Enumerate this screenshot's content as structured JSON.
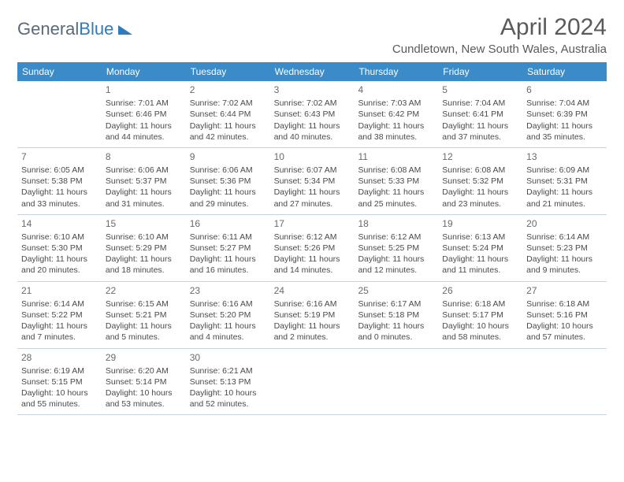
{
  "logo": {
    "general": "General",
    "blue": "Blue"
  },
  "header": {
    "title": "April 2024",
    "location": "Cundletown, New South Wales, Australia"
  },
  "weekdays": [
    "Sunday",
    "Monday",
    "Tuesday",
    "Wednesday",
    "Thursday",
    "Friday",
    "Saturday"
  ],
  "colors": {
    "header_bg": "#3b8bc9",
    "header_text": "#ffffff",
    "border": "#c8d2da",
    "text": "#4a4a4a"
  },
  "weeks": [
    [
      null,
      {
        "n": "1",
        "sunrise": "7:01 AM",
        "sunset": "6:46 PM",
        "daylight": "11 hours and 44 minutes."
      },
      {
        "n": "2",
        "sunrise": "7:02 AM",
        "sunset": "6:44 PM",
        "daylight": "11 hours and 42 minutes."
      },
      {
        "n": "3",
        "sunrise": "7:02 AM",
        "sunset": "6:43 PM",
        "daylight": "11 hours and 40 minutes."
      },
      {
        "n": "4",
        "sunrise": "7:03 AM",
        "sunset": "6:42 PM",
        "daylight": "11 hours and 38 minutes."
      },
      {
        "n": "5",
        "sunrise": "7:04 AM",
        "sunset": "6:41 PM",
        "daylight": "11 hours and 37 minutes."
      },
      {
        "n": "6",
        "sunrise": "7:04 AM",
        "sunset": "6:39 PM",
        "daylight": "11 hours and 35 minutes."
      }
    ],
    [
      {
        "n": "7",
        "sunrise": "6:05 AM",
        "sunset": "5:38 PM",
        "daylight": "11 hours and 33 minutes."
      },
      {
        "n": "8",
        "sunrise": "6:06 AM",
        "sunset": "5:37 PM",
        "daylight": "11 hours and 31 minutes."
      },
      {
        "n": "9",
        "sunrise": "6:06 AM",
        "sunset": "5:36 PM",
        "daylight": "11 hours and 29 minutes."
      },
      {
        "n": "10",
        "sunrise": "6:07 AM",
        "sunset": "5:34 PM",
        "daylight": "11 hours and 27 minutes."
      },
      {
        "n": "11",
        "sunrise": "6:08 AM",
        "sunset": "5:33 PM",
        "daylight": "11 hours and 25 minutes."
      },
      {
        "n": "12",
        "sunrise": "6:08 AM",
        "sunset": "5:32 PM",
        "daylight": "11 hours and 23 minutes."
      },
      {
        "n": "13",
        "sunrise": "6:09 AM",
        "sunset": "5:31 PM",
        "daylight": "11 hours and 21 minutes."
      }
    ],
    [
      {
        "n": "14",
        "sunrise": "6:10 AM",
        "sunset": "5:30 PM",
        "daylight": "11 hours and 20 minutes."
      },
      {
        "n": "15",
        "sunrise": "6:10 AM",
        "sunset": "5:29 PM",
        "daylight": "11 hours and 18 minutes."
      },
      {
        "n": "16",
        "sunrise": "6:11 AM",
        "sunset": "5:27 PM",
        "daylight": "11 hours and 16 minutes."
      },
      {
        "n": "17",
        "sunrise": "6:12 AM",
        "sunset": "5:26 PM",
        "daylight": "11 hours and 14 minutes."
      },
      {
        "n": "18",
        "sunrise": "6:12 AM",
        "sunset": "5:25 PM",
        "daylight": "11 hours and 12 minutes."
      },
      {
        "n": "19",
        "sunrise": "6:13 AM",
        "sunset": "5:24 PM",
        "daylight": "11 hours and 11 minutes."
      },
      {
        "n": "20",
        "sunrise": "6:14 AM",
        "sunset": "5:23 PM",
        "daylight": "11 hours and 9 minutes."
      }
    ],
    [
      {
        "n": "21",
        "sunrise": "6:14 AM",
        "sunset": "5:22 PM",
        "daylight": "11 hours and 7 minutes."
      },
      {
        "n": "22",
        "sunrise": "6:15 AM",
        "sunset": "5:21 PM",
        "daylight": "11 hours and 5 minutes."
      },
      {
        "n": "23",
        "sunrise": "6:16 AM",
        "sunset": "5:20 PM",
        "daylight": "11 hours and 4 minutes."
      },
      {
        "n": "24",
        "sunrise": "6:16 AM",
        "sunset": "5:19 PM",
        "daylight": "11 hours and 2 minutes."
      },
      {
        "n": "25",
        "sunrise": "6:17 AM",
        "sunset": "5:18 PM",
        "daylight": "11 hours and 0 minutes."
      },
      {
        "n": "26",
        "sunrise": "6:18 AM",
        "sunset": "5:17 PM",
        "daylight": "10 hours and 58 minutes."
      },
      {
        "n": "27",
        "sunrise": "6:18 AM",
        "sunset": "5:16 PM",
        "daylight": "10 hours and 57 minutes."
      }
    ],
    [
      {
        "n": "28",
        "sunrise": "6:19 AM",
        "sunset": "5:15 PM",
        "daylight": "10 hours and 55 minutes."
      },
      {
        "n": "29",
        "sunrise": "6:20 AM",
        "sunset": "5:14 PM",
        "daylight": "10 hours and 53 minutes."
      },
      {
        "n": "30",
        "sunrise": "6:21 AM",
        "sunset": "5:13 PM",
        "daylight": "10 hours and 52 minutes."
      },
      null,
      null,
      null,
      null
    ]
  ],
  "labels": {
    "sunrise": "Sunrise:",
    "sunset": "Sunset:",
    "daylight": "Daylight:"
  }
}
